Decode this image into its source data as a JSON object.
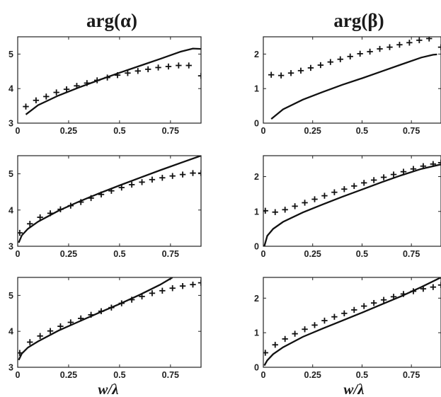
{
  "col_titles": [
    "arg(α)",
    "arg(β)"
  ],
  "xlabel": "w/λ",
  "chart_data": [
    {
      "type": "line",
      "column_title": "arg(α)",
      "xlabel": "",
      "xlim": [
        0,
        0.9
      ],
      "ylim": [
        3,
        5.5
      ],
      "xticks": [
        0,
        0.25,
        0.5,
        0.75
      ],
      "xtick_labels": [
        "0",
        "0.25",
        "0.5",
        "0.75"
      ],
      "yticks": [
        3,
        4,
        5
      ],
      "ytick_labels": [
        "3",
        "4",
        "5"
      ],
      "series": [
        {
          "style": "solid line",
          "x": [
            0.04,
            0.1,
            0.2,
            0.3,
            0.4,
            0.5,
            0.6,
            0.7,
            0.8,
            0.86,
            0.9
          ],
          "y": [
            3.25,
            3.52,
            3.8,
            4.03,
            4.25,
            4.46,
            4.66,
            4.86,
            5.07,
            5.16,
            5.15
          ]
        },
        {
          "style": "plus markers",
          "x": [
            0.04,
            0.09,
            0.14,
            0.19,
            0.24,
            0.29,
            0.34,
            0.39,
            0.44,
            0.49,
            0.54,
            0.59,
            0.64,
            0.69,
            0.74,
            0.79,
            0.84,
            0.9
          ],
          "y": [
            3.48,
            3.66,
            3.77,
            3.89,
            3.98,
            4.08,
            4.16,
            4.24,
            4.32,
            4.39,
            4.45,
            4.51,
            4.56,
            4.61,
            4.64,
            4.67,
            4.67,
            4.37
          ]
        }
      ]
    },
    {
      "type": "line",
      "column_title": "arg(β)",
      "xlabel": "",
      "xlim": [
        0,
        0.9
      ],
      "ylim": [
        0,
        2.5
      ],
      "xticks": [
        0,
        0.25,
        0.5,
        0.75
      ],
      "xtick_labels": [
        "0",
        "0.25",
        "0.5",
        "0.75"
      ],
      "yticks": [
        0,
        1,
        2
      ],
      "ytick_labels": [
        "0",
        "1",
        "2"
      ],
      "series": [
        {
          "style": "solid line",
          "x": [
            0.04,
            0.1,
            0.2,
            0.3,
            0.4,
            0.5,
            0.6,
            0.7,
            0.8,
            0.86,
            0.88
          ],
          "y": [
            0.12,
            0.4,
            0.68,
            0.9,
            1.11,
            1.3,
            1.5,
            1.7,
            1.9,
            1.98,
            1.99
          ]
        },
        {
          "style": "plus markers",
          "x": [
            0.04,
            0.09,
            0.14,
            0.19,
            0.24,
            0.29,
            0.34,
            0.39,
            0.44,
            0.49,
            0.54,
            0.59,
            0.64,
            0.69,
            0.74,
            0.79,
            0.84,
            0.9
          ],
          "y": [
            1.4,
            1.38,
            1.45,
            1.52,
            1.6,
            1.68,
            1.77,
            1.85,
            1.93,
            2.01,
            2.07,
            2.15,
            2.2,
            2.27,
            2.33,
            2.4,
            2.45,
            2.2
          ]
        }
      ]
    },
    {
      "type": "line",
      "column_title": "arg(α)",
      "xlabel": "",
      "xlim": [
        0,
        0.9
      ],
      "ylim": [
        3,
        5.5
      ],
      "xticks": [
        0,
        0.25,
        0.5,
        0.75
      ],
      "xtick_labels": [
        "0",
        "0.25",
        "0.5",
        "0.75"
      ],
      "yticks": [
        3,
        4,
        5
      ],
      "ytick_labels": [
        "3",
        "4",
        "5"
      ],
      "series": [
        {
          "style": "solid line",
          "x": [
            0.005,
            0.02,
            0.05,
            0.1,
            0.2,
            0.3,
            0.4,
            0.5,
            0.6,
            0.7,
            0.8,
            0.9
          ],
          "y": [
            3.1,
            3.3,
            3.48,
            3.68,
            3.98,
            4.23,
            4.46,
            4.68,
            4.89,
            5.1,
            5.3,
            5.5
          ]
        },
        {
          "style": "plus markers",
          "x": [
            0.01,
            0.06,
            0.11,
            0.16,
            0.21,
            0.26,
            0.31,
            0.36,
            0.41,
            0.46,
            0.51,
            0.56,
            0.61,
            0.66,
            0.71,
            0.76,
            0.81,
            0.86,
            0.9
          ],
          "y": [
            3.37,
            3.62,
            3.8,
            3.91,
            4.02,
            4.12,
            4.22,
            4.33,
            4.43,
            4.53,
            4.62,
            4.7,
            4.77,
            4.84,
            4.89,
            4.94,
            4.98,
            5.02,
            5.02
          ]
        }
      ]
    },
    {
      "type": "line",
      "column_title": "arg(β)",
      "xlabel": "",
      "xlim": [
        0,
        0.9
      ],
      "ylim": [
        0,
        2.6
      ],
      "xticks": [
        0,
        0.25,
        0.5,
        0.75
      ],
      "xtick_labels": [
        "0",
        "0.25",
        "0.5",
        "0.75"
      ],
      "yticks": [
        0,
        1,
        2
      ],
      "ytick_labels": [
        "0",
        "1",
        "2"
      ],
      "series": [
        {
          "style": "solid line",
          "x": [
            0.005,
            0.02,
            0.05,
            0.1,
            0.2,
            0.3,
            0.4,
            0.5,
            0.6,
            0.7,
            0.8,
            0.9
          ],
          "y": [
            0.0,
            0.3,
            0.5,
            0.7,
            0.97,
            1.2,
            1.42,
            1.63,
            1.84,
            2.04,
            2.22,
            2.35
          ]
        },
        {
          "style": "plus markers",
          "x": [
            0.01,
            0.06,
            0.11,
            0.16,
            0.21,
            0.26,
            0.31,
            0.36,
            0.41,
            0.46,
            0.51,
            0.56,
            0.61,
            0.66,
            0.71,
            0.76,
            0.81,
            0.86,
            0.9
          ],
          "y": [
            1.02,
            0.98,
            1.05,
            1.15,
            1.25,
            1.35,
            1.45,
            1.55,
            1.64,
            1.73,
            1.82,
            1.9,
            1.98,
            2.06,
            2.14,
            2.22,
            2.3,
            2.36,
            2.4
          ]
        }
      ]
    },
    {
      "type": "line",
      "column_title": "arg(α)",
      "xlabel": "w/λ",
      "xlim": [
        0,
        0.9
      ],
      "ylim": [
        3,
        5.5
      ],
      "xticks": [
        0,
        0.25,
        0.5,
        0.75
      ],
      "xtick_labels": [
        "0",
        "0.25",
        "0.5",
        "0.75"
      ],
      "yticks": [
        3,
        4,
        5
      ],
      "ytick_labels": [
        "3",
        "4",
        "5"
      ],
      "series": [
        {
          "style": "solid line",
          "x": [
            0.005,
            0.02,
            0.05,
            0.1,
            0.2,
            0.3,
            0.4,
            0.5,
            0.6,
            0.7,
            0.76
          ],
          "y": [
            3.2,
            3.38,
            3.55,
            3.72,
            4.02,
            4.27,
            4.52,
            4.76,
            5.02,
            5.3,
            5.5
          ]
        },
        {
          "style": "plus markers",
          "x": [
            0.01,
            0.06,
            0.11,
            0.16,
            0.21,
            0.26,
            0.31,
            0.36,
            0.41,
            0.46,
            0.51,
            0.56,
            0.61,
            0.66,
            0.71,
            0.76,
            0.81,
            0.86,
            0.9
          ],
          "y": [
            3.4,
            3.7,
            3.87,
            4.01,
            4.14,
            4.25,
            4.36,
            4.46,
            4.56,
            4.66,
            4.78,
            4.88,
            4.97,
            5.06,
            5.13,
            5.2,
            5.26,
            5.3,
            5.35
          ]
        }
      ]
    },
    {
      "type": "line",
      "column_title": "arg(β)",
      "xlabel": "w/λ",
      "xlim": [
        0,
        0.9
      ],
      "ylim": [
        0,
        2.6
      ],
      "xticks": [
        0,
        0.25,
        0.5,
        0.75
      ],
      "xtick_labels": [
        "0",
        "0.25",
        "0.5",
        "0.75"
      ],
      "yticks": [
        0,
        1,
        2
      ],
      "ytick_labels": [
        "0",
        "1",
        "2"
      ],
      "series": [
        {
          "style": "solid line",
          "x": [
            0.005,
            0.02,
            0.05,
            0.1,
            0.2,
            0.3,
            0.4,
            0.5,
            0.6,
            0.7,
            0.8,
            0.9
          ],
          "y": [
            0.05,
            0.2,
            0.38,
            0.58,
            0.88,
            1.12,
            1.35,
            1.58,
            1.82,
            2.06,
            2.32,
            2.6
          ]
        },
        {
          "style": "plus markers",
          "x": [
            0.01,
            0.06,
            0.11,
            0.16,
            0.21,
            0.26,
            0.31,
            0.36,
            0.41,
            0.46,
            0.51,
            0.56,
            0.61,
            0.66,
            0.71,
            0.76,
            0.81,
            0.86,
            0.9
          ],
          "y": [
            0.42,
            0.65,
            0.82,
            0.97,
            1.1,
            1.22,
            1.35,
            1.46,
            1.56,
            1.66,
            1.77,
            1.86,
            1.95,
            2.04,
            2.12,
            2.2,
            2.27,
            2.32,
            2.38
          ]
        }
      ]
    }
  ]
}
